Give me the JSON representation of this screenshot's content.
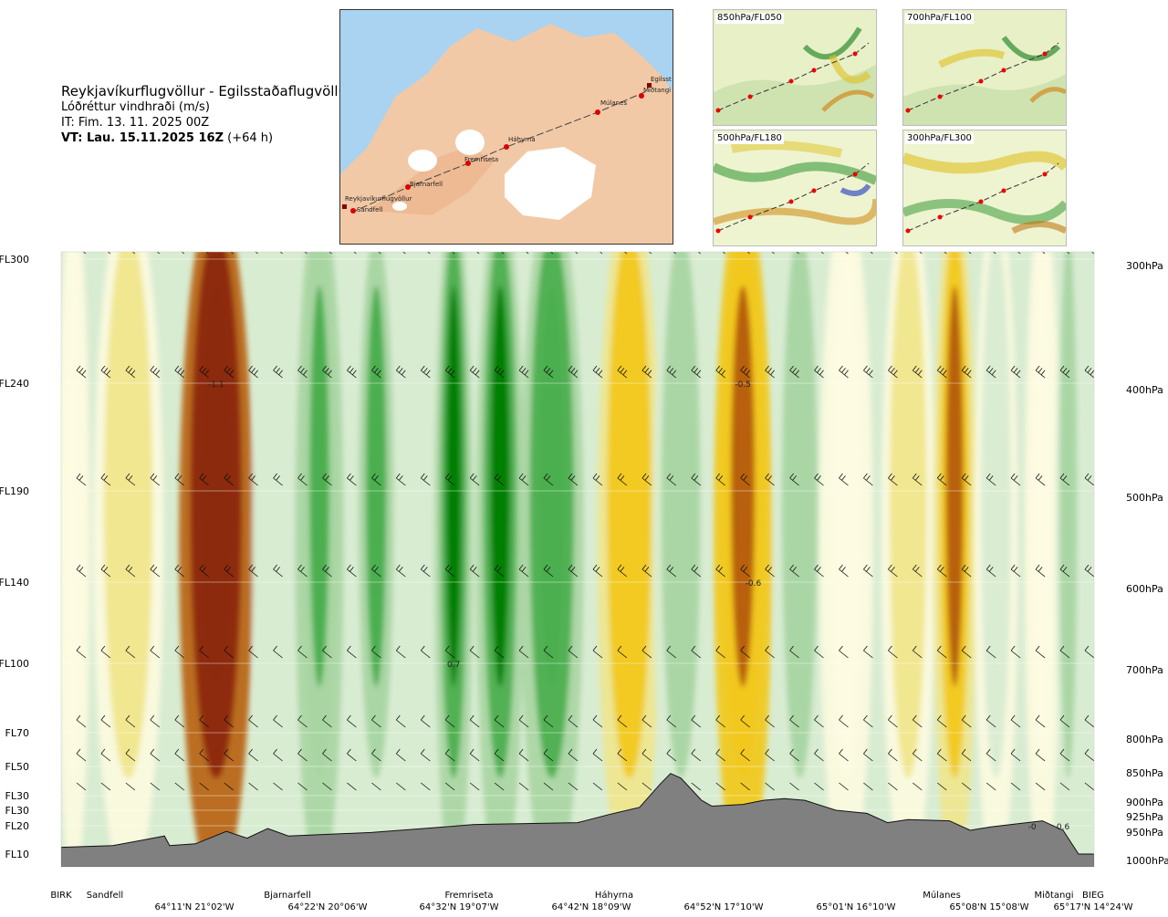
{
  "title": {
    "route": "Reykjavíkurflugvöllur - Egilsstaðaflugvöllur",
    "variable": "Lóðréttur vindhraði (m/s)",
    "init_time": "IT: Fim. 13. 11. 2025 00Z",
    "valid_label": "VT: Lau. 15.11.2025 16Z",
    "valid_offset": "(+64 h)"
  },
  "map": {
    "icon": "route-map-iceland",
    "places": [
      "Reykjavíkurflugvöllur",
      "Sandfell",
      "Bjarnarfell",
      "Fremriseta",
      "Háhyrna",
      "Múlanes",
      "Egilsst",
      "Miðtangi"
    ]
  },
  "mini_maps": [
    {
      "label": "850hPa/FL050"
    },
    {
      "label": "700hPa/FL100"
    },
    {
      "label": "500hPa/FL180"
    },
    {
      "label": "300hPa/FL300"
    }
  ],
  "colors": {
    "updraft_strong": "#008000",
    "updraft_mid": "#4caf50",
    "updraft_weak": "#a8d5a2",
    "neutral": "#d8ecd2",
    "neutral_light": "#fdfbe0",
    "downdraft_weak": "#f0e68c",
    "downdraft_mid": "#f2c81a",
    "downdraft_strong": "#b8600f",
    "downdraft_extreme": "#8b2a10",
    "terrain": "#808080"
  },
  "chart_data": {
    "type": "heatmap",
    "title": "Reykjavíkurflugvöllur - Egilsstaðaflugvöllur",
    "variable": "Lóðréttur vindhraði (m/s)",
    "y_left_ticks": [
      "FL300",
      "FL240",
      "FL190",
      "FL140",
      "FL100",
      "FL70",
      "FL50",
      "FL30",
      "FL30",
      "FL20",
      "FL10"
    ],
    "y_right_ticks": [
      "300hPa",
      "400hPa",
      "500hPa",
      "600hPa",
      "700hPa",
      "800hPa",
      "850hPa",
      "900hPa",
      "925hPa",
      "950hPa",
      "1000hPa"
    ],
    "pressure_levels_hPa": [
      300,
      400,
      500,
      600,
      700,
      800,
      850,
      900,
      925,
      950,
      1000
    ],
    "waypoints": [
      "BIRK",
      "Sandfell",
      "Bjarnarfell",
      "Fremriseta",
      "Háhyrna",
      "Múlanes",
      "Miðtangi",
      "BIEG"
    ],
    "coordinates": [
      "64°11'N 21°02'W",
      "64°22'N 20°06'W",
      "64°32'N 19°07'W",
      "64°42'N 18°09'W",
      "64°52'N 17°10'W",
      "65°01'N 16°10'W",
      "65°08'N 15°08'W",
      "65°17'N 14°24'W"
    ],
    "value_labels": [
      {
        "text": "-1.1",
        "route_fraction": 0.15,
        "pressure_hPa": 400
      },
      {
        "text": "-0.5",
        "route_fraction": 0.66,
        "pressure_hPa": 400
      },
      {
        "text": "-0.6",
        "route_fraction": 0.67,
        "pressure_hPa": 600
      },
      {
        "text": "0.7",
        "route_fraction": 0.38,
        "pressure_hPa": 700
      },
      {
        "text": "-0",
        "route_fraction": 0.94,
        "pressure_hPa": 950
      },
      {
        "text": "0.6",
        "route_fraction": 0.97,
        "pressure_hPa": 950
      }
    ],
    "vertical_velocity_bands": [
      {
        "route_fraction": 0.012,
        "value": -0.05
      },
      {
        "route_fraction": 0.065,
        "value": -0.2
      },
      {
        "route_fraction": 0.15,
        "value": -1.1
      },
      {
        "route_fraction": 0.21,
        "value": 0.2
      },
      {
        "route_fraction": 0.25,
        "value": 0.45
      },
      {
        "route_fraction": 0.305,
        "value": 0.4
      },
      {
        "route_fraction": 0.35,
        "value": 0.15
      },
      {
        "route_fraction": 0.38,
        "value": 0.7
      },
      {
        "route_fraction": 0.425,
        "value": 0.75
      },
      {
        "route_fraction": 0.475,
        "value": 0.55
      },
      {
        "route_fraction": 0.55,
        "value": -0.35
      },
      {
        "route_fraction": 0.6,
        "value": 0.3
      },
      {
        "route_fraction": 0.66,
        "value": -0.6
      },
      {
        "route_fraction": 0.715,
        "value": 0.35
      },
      {
        "route_fraction": 0.76,
        "value": -0.1
      },
      {
        "route_fraction": 0.82,
        "value": -0.15
      },
      {
        "route_fraction": 0.865,
        "value": -0.45
      },
      {
        "route_fraction": 0.905,
        "value": 0.1
      },
      {
        "route_fraction": 0.95,
        "value": -0.05
      },
      {
        "route_fraction": 0.975,
        "value": 0.3
      }
    ],
    "terrain_hPa": [
      {
        "route_fraction": 0.0,
        "hPa": 988
      },
      {
        "route_fraction": 0.05,
        "hPa": 985
      },
      {
        "route_fraction": 0.08,
        "hPa": 975
      },
      {
        "route_fraction": 0.1,
        "hPa": 968
      },
      {
        "route_fraction": 0.105,
        "hPa": 985
      },
      {
        "route_fraction": 0.13,
        "hPa": 982
      },
      {
        "route_fraction": 0.16,
        "hPa": 960
      },
      {
        "route_fraction": 0.18,
        "hPa": 972
      },
      {
        "route_fraction": 0.2,
        "hPa": 955
      },
      {
        "route_fraction": 0.22,
        "hPa": 968
      },
      {
        "route_fraction": 0.3,
        "hPa": 962
      },
      {
        "route_fraction": 0.35,
        "hPa": 955
      },
      {
        "route_fraction": 0.4,
        "hPa": 948
      },
      {
        "route_fraction": 0.5,
        "hPa": 945
      },
      {
        "route_fraction": 0.53,
        "hPa": 932
      },
      {
        "route_fraction": 0.56,
        "hPa": 920
      },
      {
        "route_fraction": 0.58,
        "hPa": 880
      },
      {
        "route_fraction": 0.59,
        "hPa": 862
      },
      {
        "route_fraction": 0.6,
        "hPa": 870
      },
      {
        "route_fraction": 0.62,
        "hPa": 908
      },
      {
        "route_fraction": 0.63,
        "hPa": 918
      },
      {
        "route_fraction": 0.66,
        "hPa": 915
      },
      {
        "route_fraction": 0.68,
        "hPa": 908
      },
      {
        "route_fraction": 0.7,
        "hPa": 905
      },
      {
        "route_fraction": 0.72,
        "hPa": 908
      },
      {
        "route_fraction": 0.75,
        "hPa": 925
      },
      {
        "route_fraction": 0.78,
        "hPa": 930
      },
      {
        "route_fraction": 0.8,
        "hPa": 945
      },
      {
        "route_fraction": 0.82,
        "hPa": 940
      },
      {
        "route_fraction": 0.86,
        "hPa": 942
      },
      {
        "route_fraction": 0.88,
        "hPa": 958
      },
      {
        "route_fraction": 0.9,
        "hPa": 952
      },
      {
        "route_fraction": 0.95,
        "hPa": 942
      },
      {
        "route_fraction": 0.97,
        "hPa": 958
      },
      {
        "route_fraction": 0.985,
        "hPa": 1000
      },
      {
        "route_fraction": 1.0,
        "hPa": 1000
      }
    ],
    "legend": "none",
    "grid": true
  }
}
